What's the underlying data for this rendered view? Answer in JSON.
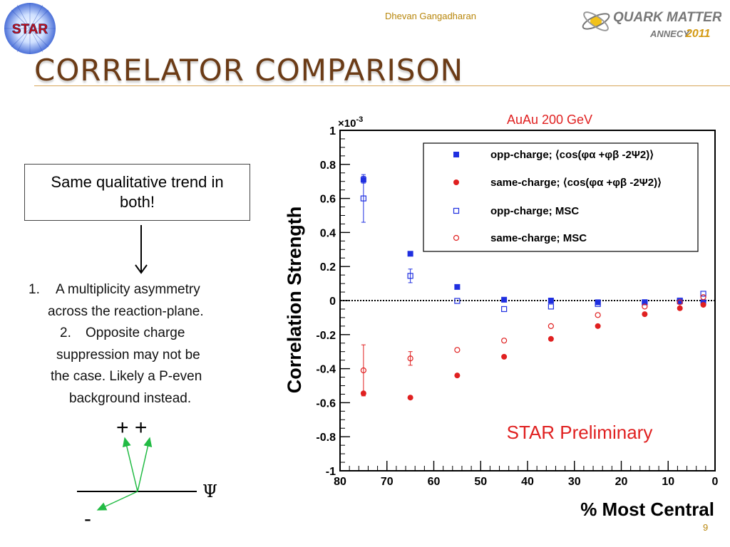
{
  "header": {
    "presenter": "Dhevan Gangadharan",
    "logo_left_text": "STAR",
    "logo_right_line1": "QUARK MATTER",
    "logo_right_line2": "ANNECY",
    "logo_right_year": "2011"
  },
  "slide": {
    "title": "CORRELATOR COMPARISON",
    "callout": "Same qualitative trend in both!",
    "points": [
      {
        "num": "1.",
        "text_line1": "A multiplicity asymmetry",
        "text_line2": "across the reaction-plane."
      },
      {
        "num": "2.",
        "text_line1": "Opposite charge",
        "text_line2": "suppression may not be",
        "text_line3": "the case.  Likely a P-even",
        "text_line4": "background instead."
      }
    ],
    "diagram": {
      "plus_label": "+ +",
      "minus_label": "-",
      "psi_label": "Ψ"
    },
    "page_number": "9"
  },
  "colors": {
    "title": "#6b3b16",
    "accent": "#b8860b",
    "blue": "#1f2fe0",
    "red": "#e02020",
    "arrow_green": "#22bb44"
  },
  "chart_data": {
    "type": "scatter",
    "title": "AuAu 200 GeV",
    "multiplier": "×10-3",
    "xlabel": "% Most Central",
    "ylabel": "Correlation Strength",
    "xlim": [
      80,
      0
    ],
    "ylim": [
      -1,
      1
    ],
    "x_ticks": [
      "80",
      "70",
      "60",
      "50",
      "40",
      "30",
      "20",
      "10",
      "0"
    ],
    "y_ticks": [
      "1",
      "0.8",
      "0.6",
      "0.4",
      "0.2",
      "0",
      "-0.2",
      "-0.4",
      "-0.6",
      "-0.8",
      "-1"
    ],
    "annotation": "STAR Preliminary",
    "legend_position": "top-right",
    "series": [
      {
        "name": "opp-charge; ⟨cos(φα +φβ -2Ψ2)⟩",
        "color": "#1f2fe0",
        "marker": "filled-square",
        "x": [
          75,
          65,
          55,
          45,
          35,
          25,
          15,
          7.5,
          2.5
        ],
        "y": [
          0.71,
          0.275,
          0.08,
          0.005,
          0.0,
          -0.01,
          -0.01,
          -0.005,
          -0.01
        ],
        "err": [
          0.02,
          0,
          0,
          0,
          0,
          0,
          0,
          0,
          0
        ]
      },
      {
        "name": "same-charge; ⟨cos(φα +φβ -2Ψ2)⟩",
        "color": "#e02020",
        "marker": "filled-circle",
        "x": [
          75,
          65,
          55,
          45,
          35,
          25,
          15,
          7.5,
          2.5
        ],
        "y": [
          -0.545,
          -0.57,
          -0.44,
          -0.33,
          -0.225,
          -0.15,
          -0.08,
          -0.045,
          -0.025
        ],
        "err": [
          0,
          0,
          0,
          0,
          0,
          0,
          0,
          0,
          0
        ]
      },
      {
        "name": "opp-charge; MSC",
        "color": "#1f2fe0",
        "marker": "open-square",
        "x": [
          75,
          65,
          55,
          45,
          35,
          25,
          15,
          7.5,
          2.5
        ],
        "y": [
          0.6,
          0.145,
          -0.002,
          -0.05,
          -0.035,
          -0.02,
          -0.01,
          0.0,
          0.04
        ],
        "err": [
          0.14,
          0.04,
          0,
          0,
          0,
          0,
          0,
          0,
          0
        ]
      },
      {
        "name": "same-charge; MSC",
        "color": "#e02020",
        "marker": "open-circle",
        "x": [
          75,
          65,
          55,
          45,
          35,
          25,
          15,
          7.5,
          2.5
        ],
        "y": [
          -0.41,
          -0.34,
          -0.29,
          -0.235,
          -0.15,
          -0.085,
          -0.035,
          -0.01,
          0.02
        ],
        "err": [
          0.15,
          0.04,
          0,
          0,
          0,
          0,
          0,
          0,
          0
        ]
      }
    ]
  }
}
